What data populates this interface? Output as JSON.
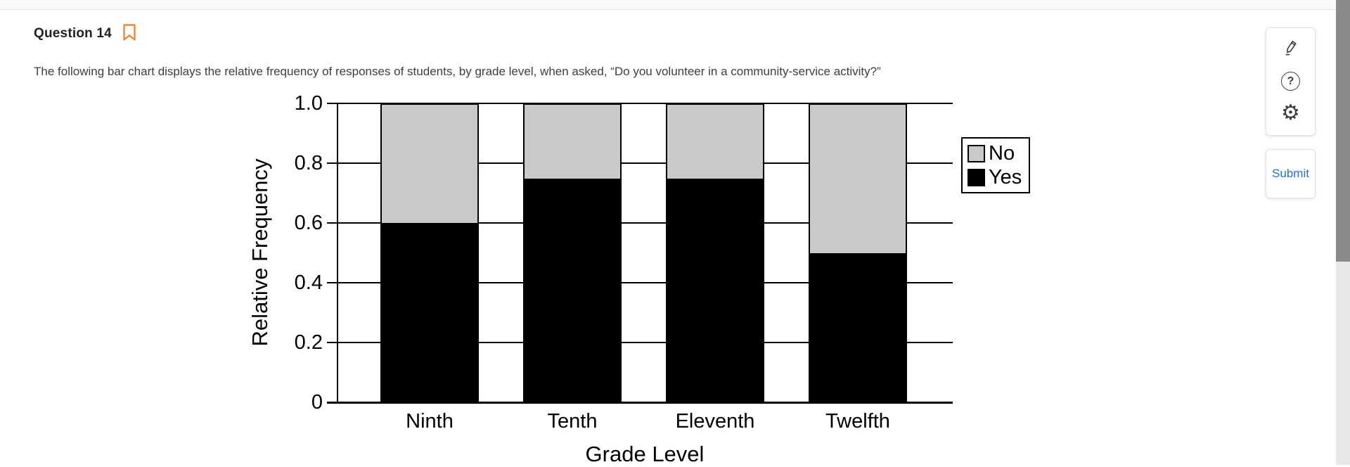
{
  "header": {
    "question_label": "Question 14",
    "bookmark_icon": "bookmark-outline",
    "bookmark_color": "#ED8936"
  },
  "question": {
    "text": "The following bar chart displays the relative frequency of responses of students, by grade level, when asked, “Do you volunteer in a community-service activity?”"
  },
  "chart_data": {
    "type": "bar",
    "stacked": true,
    "title": "",
    "categories": [
      "Ninth",
      "Tenth",
      "Eleventh",
      "Twelfth"
    ],
    "series": [
      {
        "name": "Yes",
        "color": "#000000",
        "values": [
          0.6,
          0.75,
          0.75,
          0.5
        ]
      },
      {
        "name": "No",
        "color": "#c9c9c9",
        "values": [
          0.4,
          0.25,
          0.25,
          0.5
        ]
      }
    ],
    "xlabel": "Grade Level",
    "ylabel": "Relative Frequency",
    "ylim": [
      0,
      1.0
    ],
    "yticks": [
      0,
      0.2,
      0.4,
      0.6,
      0.8,
      1.0
    ],
    "ytick_labels": [
      "0",
      "0.2",
      "0.4",
      "0.6",
      "0.8",
      "1.0"
    ],
    "grid": true,
    "legend": {
      "position": "right",
      "entries": [
        {
          "label": "No",
          "color": "#c9c9c9"
        },
        {
          "label": "Yes",
          "color": "#000000"
        }
      ]
    }
  },
  "toolbar": {
    "icons": [
      {
        "name": "pen-annotate-icon"
      },
      {
        "name": "help-icon"
      },
      {
        "name": "settings-gear-icon"
      }
    ],
    "icon_color": "#3c3c3c"
  },
  "submit": {
    "label": "Submit",
    "color": "#1a73e8"
  },
  "scrollbar": {
    "thumb_color": "#8a8a8a",
    "track_color": "#e8e8e8"
  }
}
